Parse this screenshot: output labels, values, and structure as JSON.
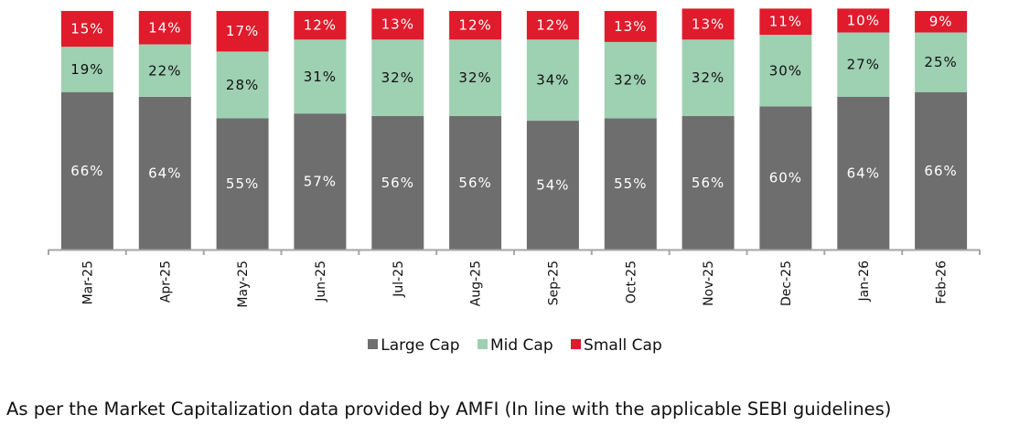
{
  "chart_data": {
    "type": "bar",
    "stacked": true,
    "title": "",
    "xlabel": "",
    "ylabel": "",
    "ylim": [
      0,
      100
    ],
    "grid": false,
    "legend_position": "bottom-center",
    "categories": [
      "Mar-25",
      "Apr-25",
      "May-25",
      "Jun-25",
      "Jul-25",
      "Aug-25",
      "Sep-25",
      "Oct-25",
      "Nov-25",
      "Dec-25",
      "Jan-26",
      "Feb-26"
    ],
    "series": [
      {
        "name": "Large Cap",
        "color": "#6e6e6e",
        "label_color": "#ffffff",
        "values": [
          66,
          64,
          55,
          57,
          56,
          56,
          54,
          55,
          56,
          60,
          64,
          66
        ]
      },
      {
        "name": "Mid Cap",
        "color": "#9ed0b2",
        "label_color": "#111111",
        "values": [
          19,
          22,
          28,
          31,
          32,
          32,
          34,
          32,
          32,
          30,
          27,
          25
        ]
      },
      {
        "name": "Small Cap",
        "color": "#e01b2c",
        "label_color": "#ffffff",
        "values": [
          15,
          14,
          17,
          12,
          13,
          12,
          12,
          13,
          13,
          11,
          10,
          9
        ]
      }
    ],
    "value_suffix": "%"
  },
  "legend": [
    {
      "label": "Large Cap",
      "color": "#6e6e6e"
    },
    {
      "label": "Mid Cap",
      "color": "#9ed0b2"
    },
    {
      "label": "Small Cap",
      "color": "#e01b2c"
    }
  ],
  "footnote": "As per the Market Capitalization data provided by AMFI (In line with the applicable SEBI guidelines)"
}
